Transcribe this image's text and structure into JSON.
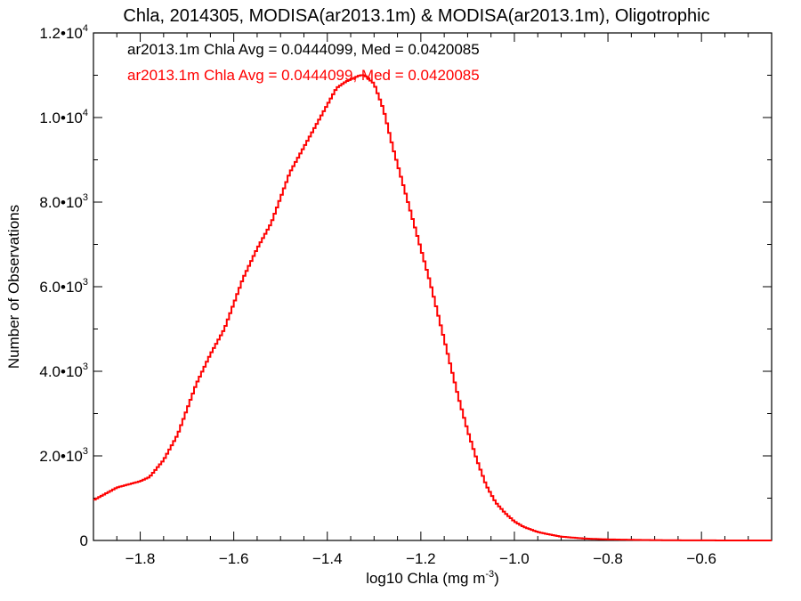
{
  "chart_data": {
    "type": "line",
    "title": "Chla, 2014305, MODISA(ar2013.1m) & MODISA(ar2013.1m), Oligotrophic",
    "xlabel_main": "log10 Chla (mg m",
    "xlabel_sup": "-3",
    "xlabel_close": ")",
    "ylabel": "Number of Observations",
    "xlim": [
      -1.9,
      -0.45
    ],
    "ylim": [
      0,
      12000
    ],
    "x_ticks": [
      {
        "value": -1.8,
        "label": "−1.8"
      },
      {
        "value": -1.6,
        "label": "−1.6"
      },
      {
        "value": -1.4,
        "label": "−1.4"
      },
      {
        "value": -1.2,
        "label": "−1.2"
      },
      {
        "value": -1.0,
        "label": "−1.0"
      },
      {
        "value": -0.8,
        "label": "−0.8"
      },
      {
        "value": -0.6,
        "label": "−0.6"
      }
    ],
    "y_ticks": [
      {
        "value": 0,
        "mantissa": "0",
        "exp": ""
      },
      {
        "value": 2000,
        "mantissa": "2.0•10",
        "exp": "3"
      },
      {
        "value": 4000,
        "mantissa": "4.0•10",
        "exp": "3"
      },
      {
        "value": 6000,
        "mantissa": "6.0•10",
        "exp": "3"
      },
      {
        "value": 8000,
        "mantissa": "8.0•10",
        "exp": "3"
      },
      {
        "value": 10000,
        "mantissa": "1.0•10",
        "exp": "4"
      },
      {
        "value": 12000,
        "mantissa": "1.2•10",
        "exp": "4"
      }
    ],
    "annotations": [
      {
        "text": "ar2013.1m Chla Avg = 0.0444099, Med = 0.0420085",
        "color": "#000000"
      },
      {
        "text": "ar2013.1m Chla Avg = 0.0444099, Med = 0.0420085",
        "color": "#ff0000"
      }
    ],
    "series": [
      {
        "color": "#ff0000",
        "x": [
          -1.9,
          -1.85,
          -1.8,
          -1.78,
          -1.75,
          -1.72,
          -1.7,
          -1.68,
          -1.65,
          -1.62,
          -1.6,
          -1.58,
          -1.55,
          -1.52,
          -1.5,
          -1.48,
          -1.45,
          -1.42,
          -1.4,
          -1.38,
          -1.36,
          -1.34,
          -1.33,
          -1.32,
          -1.31,
          -1.3,
          -1.28,
          -1.26,
          -1.24,
          -1.22,
          -1.2,
          -1.18,
          -1.16,
          -1.14,
          -1.12,
          -1.1,
          -1.08,
          -1.06,
          -1.04,
          -1.02,
          -1.0,
          -0.98,
          -0.95,
          -0.92,
          -0.9,
          -0.85,
          -0.8,
          -0.75,
          -0.7,
          -0.65,
          -0.6,
          -0.55,
          -0.5,
          -0.45
        ],
        "y": [
          950,
          1250,
          1400,
          1500,
          1900,
          2500,
          3100,
          3700,
          4400,
          5000,
          5600,
          6200,
          6900,
          7500,
          8100,
          8700,
          9300,
          9900,
          10300,
          10700,
          10850,
          10950,
          11000,
          11000,
          10900,
          10800,
          10200,
          9300,
          8500,
          7700,
          6900,
          6100,
          5200,
          4300,
          3400,
          2600,
          1900,
          1300,
          900,
          650,
          450,
          320,
          200,
          130,
          90,
          45,
          25,
          15,
          8,
          4,
          2,
          1,
          0,
          0
        ]
      }
    ]
  }
}
